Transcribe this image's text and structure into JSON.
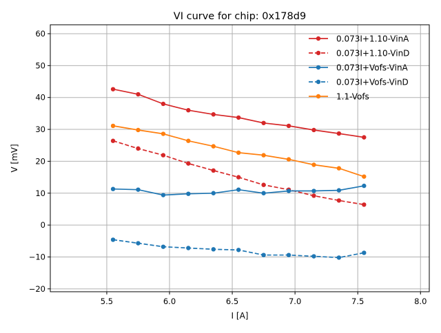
{
  "chart_data": {
    "type": "line",
    "title": "VI curve for chip: 0x178d9",
    "xlabel": "I [A]",
    "ylabel": "V [mV]",
    "xlim": [
      5.05,
      8.07
    ],
    "ylim": [
      -20.9,
      62.8
    ],
    "xticks": [
      5.5,
      6.0,
      6.5,
      7.0,
      7.5,
      8.0
    ],
    "xtick_labels": [
      "5.5",
      "6.0",
      "6.5",
      "7.0",
      "7.5",
      "8.0"
    ],
    "yticks": [
      -20,
      -10,
      0,
      10,
      20,
      30,
      40,
      50,
      60
    ],
    "ytick_labels": [
      "−20",
      "−10",
      "0",
      "10",
      "20",
      "30",
      "40",
      "50",
      "60"
    ],
    "grid": true,
    "legend_position": "top-right",
    "x": [
      5.55,
      5.75,
      5.95,
      6.15,
      6.35,
      6.55,
      6.75,
      6.95,
      7.15,
      7.35,
      7.55
    ],
    "series": [
      {
        "name": "0.073I+1.10-VinA",
        "color": "#d62728",
        "dashed": false,
        "values": [
          42.6,
          41.0,
          38.0,
          36.0,
          34.7,
          33.7,
          32.0,
          31.1,
          29.8,
          28.7,
          27.5
        ]
      },
      {
        "name": "0.073I+1.10-VinD",
        "color": "#d62728",
        "dashed": true,
        "values": [
          26.4,
          24.0,
          21.9,
          19.3,
          17.1,
          15.0,
          12.6,
          11.1,
          9.2,
          7.7,
          6.4
        ]
      },
      {
        "name": "0.073I+Vofs-VinA",
        "color": "#1f77b4",
        "dashed": false,
        "values": [
          11.3,
          11.1,
          9.4,
          9.8,
          10.0,
          11.1,
          10.0,
          10.7,
          10.7,
          10.9,
          12.3
        ]
      },
      {
        "name": "0.073I+Vofs-VinD",
        "color": "#1f77b4",
        "dashed": true,
        "values": [
          -4.6,
          -5.7,
          -6.8,
          -7.2,
          -7.6,
          -7.8,
          -9.4,
          -9.4,
          -9.8,
          -10.2,
          -8.7
        ]
      },
      {
        "name": "1.1-Vofs",
        "color": "#ff7f0e",
        "dashed": false,
        "values": [
          31.1,
          29.8,
          28.6,
          26.4,
          24.7,
          22.7,
          21.9,
          20.6,
          18.9,
          17.8,
          15.2
        ]
      }
    ]
  }
}
